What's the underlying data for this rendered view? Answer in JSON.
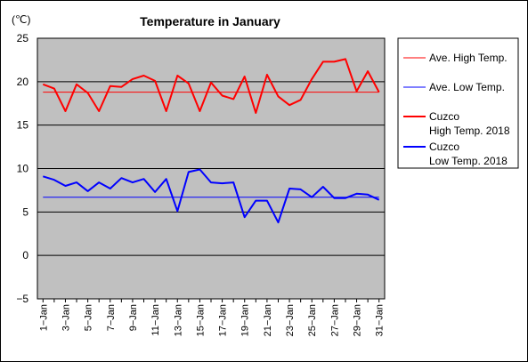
{
  "chart_data": {
    "type": "line",
    "title": "Temperature in January",
    "unit_label": "(℃)",
    "ylim": [
      -5,
      25
    ],
    "yticks": [
      "25",
      "20",
      "15",
      "10",
      "5",
      "0",
      "−5"
    ],
    "x": [
      "1-Jan",
      "2-Jan",
      "3-Jan",
      "4-Jan",
      "5-Jan",
      "6-Jan",
      "7-Jan",
      "8-Jan",
      "9-Jan",
      "10-Jan",
      "11-Jan",
      "12-Jan",
      "13-Jan",
      "14-Jan",
      "15-Jan",
      "16-Jan",
      "17-Jan",
      "18-Jan",
      "19-Jan",
      "20-Jan",
      "21-Jan",
      "22-Jan",
      "23-Jan",
      "24-Jan",
      "25-Jan",
      "26-Jan",
      "27-Jan",
      "28-Jan",
      "29-Jan",
      "30-Jan",
      "31-Jan"
    ],
    "xtick_labels": [
      "1−Jan",
      "3−Jan",
      "5−Jan",
      "7−Jan",
      "9−Jan",
      "11−Jan",
      "13−Jan",
      "15−Jan",
      "17−Jan",
      "19−Jan",
      "21−Jan",
      "23−Jan",
      "25−Jan",
      "27−Jan",
      "29−Jan",
      "31−Jan"
    ],
    "series": [
      {
        "name": "Ave. High Temp.",
        "color": "#ff0000",
        "style": "thin",
        "values": [
          18.8,
          18.8,
          18.8,
          18.8,
          18.8,
          18.8,
          18.8,
          18.8,
          18.8,
          18.8,
          18.8,
          18.8,
          18.8,
          18.8,
          18.8,
          18.8,
          18.8,
          18.8,
          18.8,
          18.8,
          18.8,
          18.8,
          18.8,
          18.8,
          18.8,
          18.8,
          18.8,
          18.8,
          18.8,
          18.8,
          18.8
        ]
      },
      {
        "name": "Ave. Low Temp.",
        "color": "#0000ff",
        "style": "thin",
        "values": [
          6.7,
          6.7,
          6.7,
          6.7,
          6.7,
          6.7,
          6.7,
          6.7,
          6.7,
          6.7,
          6.7,
          6.7,
          6.7,
          6.7,
          6.7,
          6.7,
          6.7,
          6.7,
          6.7,
          6.7,
          6.7,
          6.7,
          6.7,
          6.7,
          6.7,
          6.7,
          6.7,
          6.7,
          6.7,
          6.7,
          6.7
        ]
      },
      {
        "name": "Cuzco High Temp. 2018",
        "color": "#ff0000",
        "style": "thick",
        "values": [
          19.7,
          19.2,
          16.6,
          19.7,
          18.7,
          16.6,
          19.5,
          19.4,
          20.3,
          20.7,
          20.1,
          16.6,
          20.7,
          19.8,
          16.6,
          19.9,
          18.4,
          18.0,
          20.6,
          16.4,
          20.8,
          18.3,
          17.3,
          17.9,
          20.3,
          22.3,
          22.3,
          22.6,
          18.9,
          21.2,
          18.8
        ]
      },
      {
        "name": "Cuzco Low Temp. 2018",
        "color": "#0000ff",
        "style": "thick",
        "values": [
          9.1,
          8.7,
          8.0,
          8.4,
          7.4,
          8.4,
          7.7,
          8.9,
          8.4,
          8.8,
          7.3,
          8.8,
          5.1,
          9.6,
          9.9,
          8.4,
          8.3,
          8.4,
          4.4,
          6.3,
          6.3,
          3.8,
          7.7,
          7.6,
          6.7,
          7.9,
          6.6,
          6.6,
          7.1,
          7.0,
          6.4
        ]
      }
    ],
    "legend": [
      {
        "label": "Ave. High Temp.",
        "color": "#ff0000",
        "style": "thin"
      },
      {
        "label": "Ave. Low Temp.",
        "color": "#0000ff",
        "style": "thin"
      },
      {
        "label_line1": "Cuzco",
        "label_line2": "High Temp. 2018",
        "color": "#ff0000",
        "style": "thick"
      },
      {
        "label_line1": "Cuzco",
        "label_line2": "Low Temp. 2018",
        "color": "#0000ff",
        "style": "thick"
      }
    ],
    "plot_background": "#c0c0c0",
    "grid": true,
    "legend_position": "right"
  }
}
